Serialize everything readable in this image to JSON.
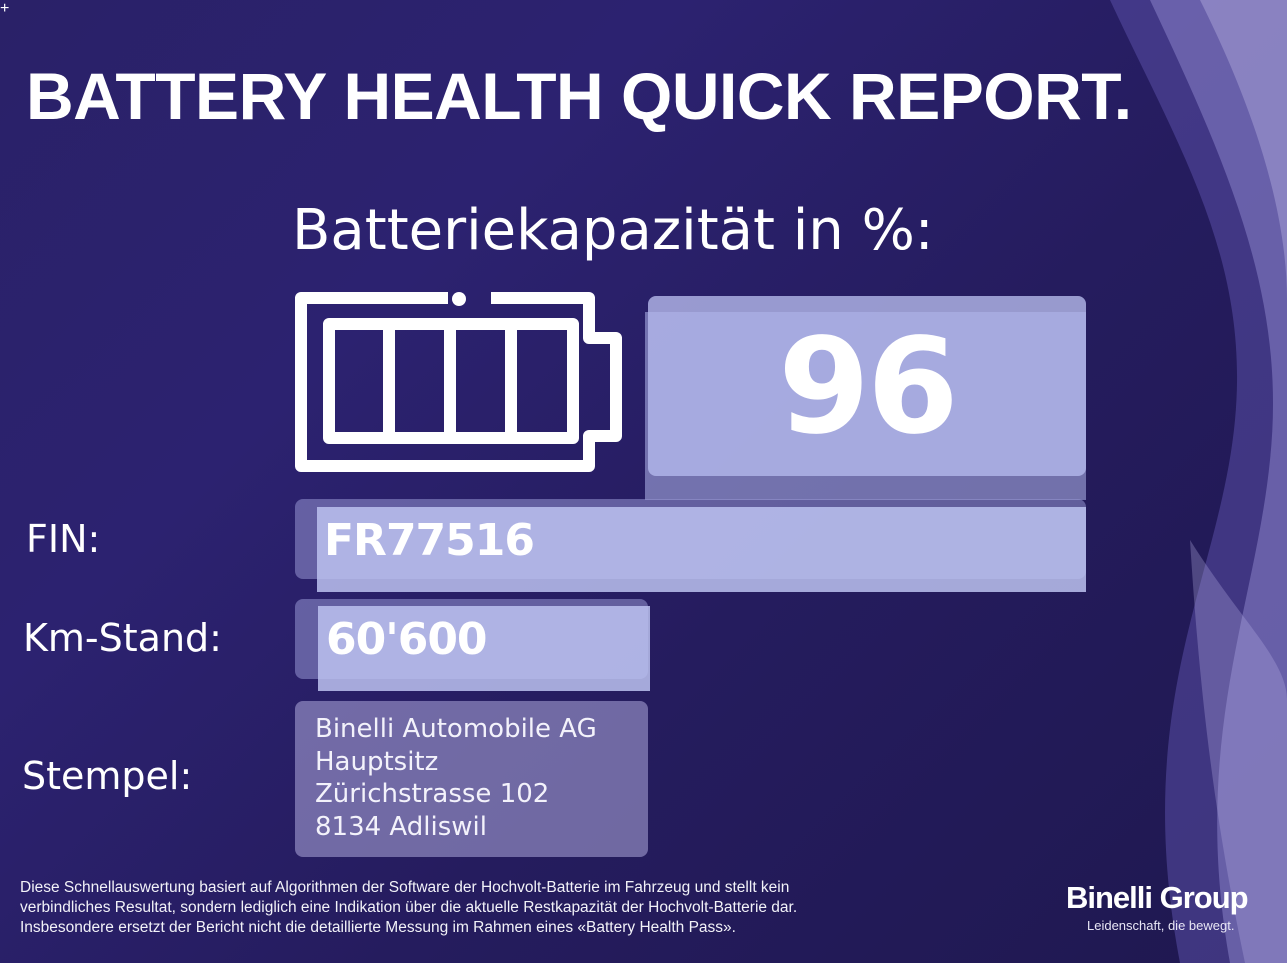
{
  "report": {
    "title": "BATTERY HEALTH QUICK REPORT.",
    "capacity_label": "Batteriekapazität in %:",
    "capacity_value": "96"
  },
  "fields": {
    "fin_label": "FIN:",
    "fin_value": "FR77516",
    "km_label": "Km-Stand:",
    "km_value": "60'600",
    "stamp_label": "Stempel:",
    "stamp_lines": [
      "Binelli Automobile AG",
      "Hauptsitz",
      "Zürichstrasse 102",
      "8134 Adliswil"
    ]
  },
  "footer": {
    "disclaimer_lines": [
      "Diese Schnellauswertung basiert auf Algorithmen der Software der Hochvolt-Batterie im Fahrzeug und stellt kein",
      "verbindliches Resultat, sondern lediglich eine Indikation über die aktuelle Restkapazität der Hochvolt-Batterie dar.",
      "Insbesondere ersetzt der Bericht nicht die detaillierte Messung im Rahmen eines «Battery Health Pass»."
    ],
    "brand_name": "Binelli Group",
    "brand_tagline": "Leidenschaft, die bewegt."
  },
  "icons": {
    "battery": "battery-full-icon",
    "corner": "crosshair-icon"
  },
  "colors": {
    "background": "#2a2168",
    "value_box": "#b9bdee",
    "stamp_box": "#afaadc",
    "wave": "#8f86d0"
  }
}
